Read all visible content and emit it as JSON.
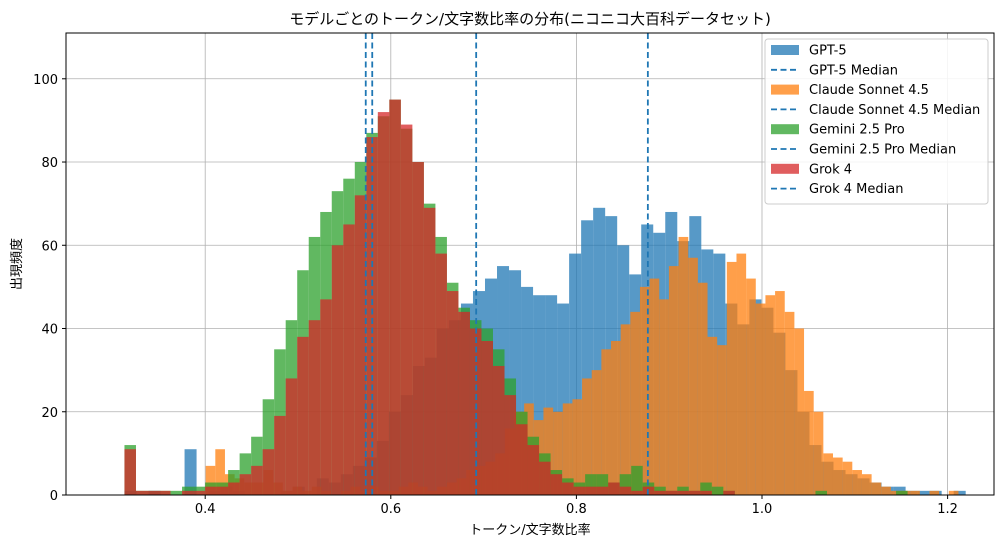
{
  "chart_data": {
    "type": "bar",
    "subtype": "histogram",
    "title": "モデルごとのトークン/文字数比率の分布(ニコニコ大百科データセット)",
    "xlabel": "トークン/文字数比率",
    "ylabel": "出現頻度",
    "xlim": [
      0.25,
      1.25
    ],
    "ylim": [
      0,
      111
    ],
    "x_ticks": [
      0.4,
      0.6,
      0.8,
      1.0,
      1.2
    ],
    "x_tick_labels": [
      "0.4",
      "0.6",
      "0.8",
      "1.0",
      "1.2"
    ],
    "y_ticks": [
      0,
      20,
      40,
      60,
      80,
      100
    ],
    "y_tick_labels": [
      "0",
      "20",
      "40",
      "60",
      "80",
      "100"
    ],
    "grid": true,
    "legend_position": "top-right",
    "bar_opacity": 0.75,
    "series": [
      {
        "name": "GPT-5",
        "color": "#1f77b4",
        "bin_start": 0.313,
        "bin_width": 0.01295,
        "counts": [
          1,
          0,
          1,
          0,
          0,
          11,
          0,
          1,
          2,
          1,
          0,
          0,
          0,
          1,
          2,
          0,
          4,
          3,
          5,
          7,
          9,
          13,
          20,
          24,
          31,
          33,
          40,
          42,
          46,
          49,
          52,
          55,
          54,
          50,
          48,
          48,
          46,
          58,
          66,
          69,
          67,
          60,
          53,
          65,
          63,
          68,
          61,
          67,
          59,
          58,
          46,
          41,
          47,
          45,
          39,
          30,
          20,
          12,
          8,
          6,
          5,
          4,
          3,
          2,
          2,
          1,
          1,
          1,
          0,
          1
        ],
        "median": 0.692,
        "median_label": "GPT-5 Median"
      },
      {
        "name": "Claude Sonnet 4.5",
        "color": "#ff7f0e",
        "bin_start": 0.4005,
        "bin_width": 0.0104,
        "counts": [
          7,
          11,
          5,
          4,
          3,
          3,
          6,
          3,
          1,
          2,
          1,
          2,
          1,
          0,
          1,
          2,
          1,
          2,
          1,
          1,
          2,
          3,
          2,
          1,
          2,
          3,
          4,
          6,
          7,
          8,
          10,
          16,
          20,
          22,
          18,
          21,
          20,
          22,
          23,
          28,
          30,
          35,
          37,
          41,
          44,
          50,
          52,
          47,
          55,
          62,
          57,
          51,
          38,
          36,
          56,
          58,
          52,
          46,
          48,
          49,
          44,
          40,
          25,
          20,
          10,
          9,
          8,
          6,
          5,
          3,
          2,
          1,
          1,
          1,
          0,
          1,
          0,
          1,
          0,
          0,
          0,
          0,
          0,
          0,
          1
        ],
        "median": 0.877,
        "median_label": "Claude Sonnet 4.5 Median"
      },
      {
        "name": "Gemini 2.5 Pro",
        "color": "#2ca02c",
        "bin_start": 0.313,
        "bin_width": 0.01241,
        "counts": [
          12,
          1,
          1,
          1,
          1,
          2,
          2,
          3,
          3,
          6,
          10,
          14,
          23,
          35,
          42,
          54,
          62,
          68,
          73,
          76,
          80,
          87,
          91,
          95,
          88,
          80,
          70,
          62,
          51,
          45,
          42,
          40,
          35,
          28,
          20,
          14,
          10,
          6,
          4,
          3,
          5,
          5,
          3,
          5,
          7,
          3,
          2,
          1,
          2,
          1,
          3,
          2,
          1,
          0,
          0,
          0,
          0,
          0,
          0,
          0,
          1,
          0,
          0,
          0,
          0,
          0,
          0,
          1
        ],
        "median": 0.58,
        "median_label": "Gemini 2.5 Pro Median"
      },
      {
        "name": "Grok 4",
        "color": "#d62728",
        "bin_start": 0.313,
        "bin_width": 0.01241,
        "counts": [
          11,
          1,
          1,
          1,
          0,
          1,
          1,
          2,
          2,
          3,
          5,
          7,
          11,
          19,
          28,
          38,
          42,
          47,
          60,
          65,
          72,
          86,
          92,
          95,
          89,
          80,
          69,
          58,
          49,
          44,
          40,
          37,
          31,
          24,
          17,
          12,
          8,
          5,
          3,
          2,
          2,
          2,
          3,
          2,
          1,
          2,
          1,
          1,
          1,
          1,
          1,
          0,
          1
        ],
        "median": 0.573,
        "median_label": "Grok 4 Median"
      }
    ]
  }
}
